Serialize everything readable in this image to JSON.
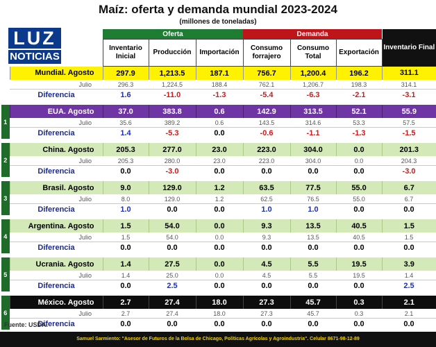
{
  "title": "Maíz: oferta y demanda mundial 2023-2024",
  "subtitle": "(millones de toneladas)",
  "logo": {
    "top": "LUZ",
    "bottom": "NOTICIAS"
  },
  "groups": {
    "oferta": "Oferta",
    "demanda": "Demanda"
  },
  "columns": [
    "Inventario Inicial",
    "Producción",
    "Importación",
    "Consumo forrajero",
    "Consumo Total",
    "Exportación",
    "Inventario Final"
  ],
  "chart_data": {
    "type": "table",
    "title": "Maíz: oferta y demanda mundial 2023-2024",
    "unit": "millones de toneladas",
    "column_groups": [
      {
        "name": "Oferta",
        "columns": [
          "Inventario Inicial",
          "Producción",
          "Importación"
        ]
      },
      {
        "name": "Demanda",
        "columns": [
          "Consumo forrajero",
          "Consumo Total",
          "Exportación"
        ]
      },
      {
        "name": "",
        "columns": [
          "Inventario Final"
        ]
      }
    ],
    "sections": [
      {
        "index": "",
        "name": "Mundial. Agosto",
        "theme": "yellow",
        "agosto": [
          "297.9",
          "1,213.5",
          "187.1",
          "756.7",
          "1,200.4",
          "196.2",
          "311.1"
        ],
        "julio": [
          "296.3",
          "1,224.5",
          "188.4",
          "762.1",
          "1,206.7",
          "198.3",
          "314.1"
        ],
        "diferencia": [
          "1.6",
          "-11.0",
          "-1.3",
          "-5.4",
          "-6.3",
          "-2.1",
          "-3.1"
        ]
      },
      {
        "index": "1",
        "name": "EUA. Agosto",
        "theme": "purple",
        "agosto": [
          "37.0",
          "383.8",
          "0.6",
          "142.9",
          "313.5",
          "52.1",
          "55.9"
        ],
        "julio": [
          "35.6",
          "389.2",
          "0.6",
          "143.5",
          "314.6",
          "53.3",
          "57.5"
        ],
        "diferencia": [
          "1.4",
          "-5.3",
          "0.0",
          "-0.6",
          "-1.1",
          "-1.3",
          "-1.5"
        ]
      },
      {
        "index": "2",
        "name": "China. Agosto",
        "theme": "green",
        "agosto": [
          "205.3",
          "277.0",
          "23.0",
          "223.0",
          "304.0",
          "0.0",
          "201.3"
        ],
        "julio": [
          "205.3",
          "280.0",
          "23.0",
          "223.0",
          "304.0",
          "0.0",
          "204.3"
        ],
        "diferencia": [
          "0.0",
          "-3.0",
          "0.0",
          "0.0",
          "0.0",
          "0.0",
          "-3.0"
        ]
      },
      {
        "index": "3",
        "name": "Brasil. Agosto",
        "theme": "green",
        "agosto": [
          "9.0",
          "129.0",
          "1.2",
          "63.5",
          "77.5",
          "55.0",
          "6.7"
        ],
        "julio": [
          "8.0",
          "129.0",
          "1.2",
          "62.5",
          "76.5",
          "55.0",
          "6.7"
        ],
        "diferencia": [
          "1.0",
          "0.0",
          "0.0",
          "1.0",
          "1.0",
          "0.0",
          "0.0"
        ]
      },
      {
        "index": "4",
        "name": "Argentina. Agosto",
        "theme": "green",
        "agosto": [
          "1.5",
          "54.0",
          "0.0",
          "9.3",
          "13.5",
          "40.5",
          "1.5"
        ],
        "julio": [
          "1.5",
          "54.0",
          "0.0",
          "9.3",
          "13.5",
          "40.5",
          "1.5"
        ],
        "diferencia": [
          "0.0",
          "0.0",
          "0.0",
          "0.0",
          "0.0",
          "0.0",
          "0.0"
        ]
      },
      {
        "index": "5",
        "name": "Ucrania. Agosto",
        "theme": "green",
        "agosto": [
          "1.4",
          "27.5",
          "0.0",
          "4.5",
          "5.5",
          "19.5",
          "3.9"
        ],
        "julio": [
          "1.4",
          "25.0",
          "0.0",
          "4.5",
          "5.5",
          "19.5",
          "1.4"
        ],
        "diferencia": [
          "0.0",
          "2.5",
          "0.0",
          "0.0",
          "0.0",
          "0.0",
          "2.5"
        ]
      },
      {
        "index": "6",
        "name": "México. Agosto",
        "theme": "black",
        "agosto": [
          "2.7",
          "27.4",
          "18.0",
          "27.3",
          "45.7",
          "0.3",
          "2.1"
        ],
        "julio": [
          "2.7",
          "27.4",
          "18.0",
          "27.3",
          "45.7",
          "0.3",
          "2.1"
        ],
        "diferencia": [
          "0.0",
          "0.0",
          "0.0",
          "0.0",
          "0.0",
          "0.0",
          "0.0"
        ]
      }
    ]
  },
  "row_labels": {
    "julio": "Julio",
    "diferencia": "Diferencia"
  },
  "source": "Fuente: USDA.",
  "footer": "Samuel Sarmiento: \"Asesor de Futuros de la Bolsa de Chicago, Políticas Agrícolas y Agroindustria\". Celular 8671-98-12-89"
}
